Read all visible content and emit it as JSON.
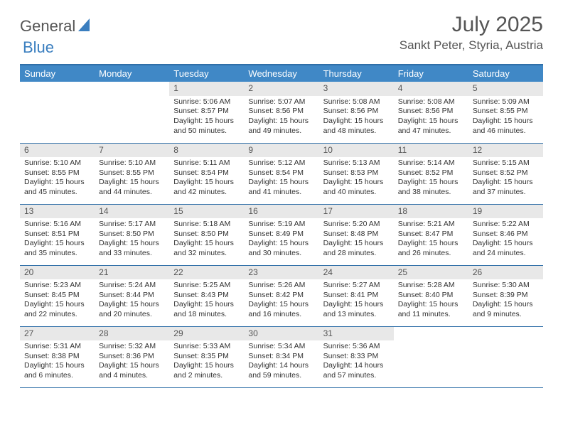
{
  "logo": {
    "text1": "General",
    "text2": "Blue"
  },
  "title": "July 2025",
  "location": "Sankt Peter, Styria, Austria",
  "colors": {
    "header_bg": "#4088c6",
    "header_text": "#ffffff",
    "rule": "#2f6fa8",
    "daynum_bg": "#e8e8e8",
    "body_text": "#333333"
  },
  "weekdays": [
    "Sunday",
    "Monday",
    "Tuesday",
    "Wednesday",
    "Thursday",
    "Friday",
    "Saturday"
  ],
  "weeks": [
    [
      null,
      null,
      {
        "n": "1",
        "sr": "5:06 AM",
        "ss": "8:57 PM",
        "d1": "Daylight: 15 hours",
        "d2": "and 50 minutes."
      },
      {
        "n": "2",
        "sr": "5:07 AM",
        "ss": "8:56 PM",
        "d1": "Daylight: 15 hours",
        "d2": "and 49 minutes."
      },
      {
        "n": "3",
        "sr": "5:08 AM",
        "ss": "8:56 PM",
        "d1": "Daylight: 15 hours",
        "d2": "and 48 minutes."
      },
      {
        "n": "4",
        "sr": "5:08 AM",
        "ss": "8:56 PM",
        "d1": "Daylight: 15 hours",
        "d2": "and 47 minutes."
      },
      {
        "n": "5",
        "sr": "5:09 AM",
        "ss": "8:55 PM",
        "d1": "Daylight: 15 hours",
        "d2": "and 46 minutes."
      }
    ],
    [
      {
        "n": "6",
        "sr": "5:10 AM",
        "ss": "8:55 PM",
        "d1": "Daylight: 15 hours",
        "d2": "and 45 minutes."
      },
      {
        "n": "7",
        "sr": "5:10 AM",
        "ss": "8:55 PM",
        "d1": "Daylight: 15 hours",
        "d2": "and 44 minutes."
      },
      {
        "n": "8",
        "sr": "5:11 AM",
        "ss": "8:54 PM",
        "d1": "Daylight: 15 hours",
        "d2": "and 42 minutes."
      },
      {
        "n": "9",
        "sr": "5:12 AM",
        "ss": "8:54 PM",
        "d1": "Daylight: 15 hours",
        "d2": "and 41 minutes."
      },
      {
        "n": "10",
        "sr": "5:13 AM",
        "ss": "8:53 PM",
        "d1": "Daylight: 15 hours",
        "d2": "and 40 minutes."
      },
      {
        "n": "11",
        "sr": "5:14 AM",
        "ss": "8:52 PM",
        "d1": "Daylight: 15 hours",
        "d2": "and 38 minutes."
      },
      {
        "n": "12",
        "sr": "5:15 AM",
        "ss": "8:52 PM",
        "d1": "Daylight: 15 hours",
        "d2": "and 37 minutes."
      }
    ],
    [
      {
        "n": "13",
        "sr": "5:16 AM",
        "ss": "8:51 PM",
        "d1": "Daylight: 15 hours",
        "d2": "and 35 minutes."
      },
      {
        "n": "14",
        "sr": "5:17 AM",
        "ss": "8:50 PM",
        "d1": "Daylight: 15 hours",
        "d2": "and 33 minutes."
      },
      {
        "n": "15",
        "sr": "5:18 AM",
        "ss": "8:50 PM",
        "d1": "Daylight: 15 hours",
        "d2": "and 32 minutes."
      },
      {
        "n": "16",
        "sr": "5:19 AM",
        "ss": "8:49 PM",
        "d1": "Daylight: 15 hours",
        "d2": "and 30 minutes."
      },
      {
        "n": "17",
        "sr": "5:20 AM",
        "ss": "8:48 PM",
        "d1": "Daylight: 15 hours",
        "d2": "and 28 minutes."
      },
      {
        "n": "18",
        "sr": "5:21 AM",
        "ss": "8:47 PM",
        "d1": "Daylight: 15 hours",
        "d2": "and 26 minutes."
      },
      {
        "n": "19",
        "sr": "5:22 AM",
        "ss": "8:46 PM",
        "d1": "Daylight: 15 hours",
        "d2": "and 24 minutes."
      }
    ],
    [
      {
        "n": "20",
        "sr": "5:23 AM",
        "ss": "8:45 PM",
        "d1": "Daylight: 15 hours",
        "d2": "and 22 minutes."
      },
      {
        "n": "21",
        "sr": "5:24 AM",
        "ss": "8:44 PM",
        "d1": "Daylight: 15 hours",
        "d2": "and 20 minutes."
      },
      {
        "n": "22",
        "sr": "5:25 AM",
        "ss": "8:43 PM",
        "d1": "Daylight: 15 hours",
        "d2": "and 18 minutes."
      },
      {
        "n": "23",
        "sr": "5:26 AM",
        "ss": "8:42 PM",
        "d1": "Daylight: 15 hours",
        "d2": "and 16 minutes."
      },
      {
        "n": "24",
        "sr": "5:27 AM",
        "ss": "8:41 PM",
        "d1": "Daylight: 15 hours",
        "d2": "and 13 minutes."
      },
      {
        "n": "25",
        "sr": "5:28 AM",
        "ss": "8:40 PM",
        "d1": "Daylight: 15 hours",
        "d2": "and 11 minutes."
      },
      {
        "n": "26",
        "sr": "5:30 AM",
        "ss": "8:39 PM",
        "d1": "Daylight: 15 hours",
        "d2": "and 9 minutes."
      }
    ],
    [
      {
        "n": "27",
        "sr": "5:31 AM",
        "ss": "8:38 PM",
        "d1": "Daylight: 15 hours",
        "d2": "and 6 minutes."
      },
      {
        "n": "28",
        "sr": "5:32 AM",
        "ss": "8:36 PM",
        "d1": "Daylight: 15 hours",
        "d2": "and 4 minutes."
      },
      {
        "n": "29",
        "sr": "5:33 AM",
        "ss": "8:35 PM",
        "d1": "Daylight: 15 hours",
        "d2": "and 2 minutes."
      },
      {
        "n": "30",
        "sr": "5:34 AM",
        "ss": "8:34 PM",
        "d1": "Daylight: 14 hours",
        "d2": "and 59 minutes."
      },
      {
        "n": "31",
        "sr": "5:36 AM",
        "ss": "8:33 PM",
        "d1": "Daylight: 14 hours",
        "d2": "and 57 minutes."
      },
      null,
      null
    ]
  ],
  "labels": {
    "sunrise": "Sunrise: ",
    "sunset": "Sunset: "
  }
}
